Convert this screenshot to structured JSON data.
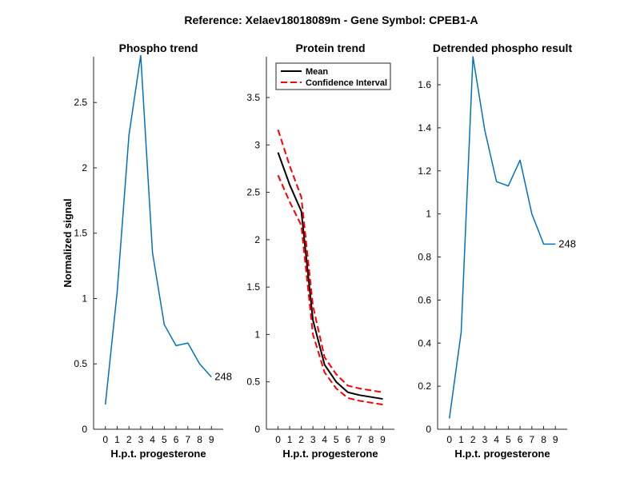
{
  "figure": {
    "suptitle": "Reference:  Xelaev18018089m - Gene Symbol:  CPEB1-A"
  },
  "chart_data": [
    {
      "type": "line",
      "title": "Phospho trend",
      "xlabel": "H.p.t. progesterone",
      "ylabel": "Normalized signal",
      "xlim": [
        -1,
        10
      ],
      "ylim": [
        0,
        2.85
      ],
      "xticks": [
        0,
        1,
        2,
        3,
        4,
        5,
        6,
        7,
        8,
        9
      ],
      "yticks": [
        0,
        0.5,
        1,
        1.5,
        2,
        2.5
      ],
      "ytick_labels": [
        "0",
        "0.5",
        "1",
        "1.5",
        "2",
        "2.5"
      ],
      "series": [
        {
          "name": "phospho",
          "color": "#0072BD",
          "style": "solid",
          "x": [
            0,
            1,
            2,
            3,
            4,
            5,
            6,
            7,
            8,
            9
          ],
          "values": [
            0.19,
            1.05,
            2.25,
            2.86,
            1.35,
            0.8,
            0.64,
            0.66,
            0.5,
            0.4
          ]
        }
      ],
      "annotation": {
        "text": "248",
        "x": 9,
        "y": 0.4
      }
    },
    {
      "type": "line",
      "title": "Protein trend",
      "xlabel": "H.p.t. progesterone",
      "ylabel": "",
      "xlim": [
        -1,
        10
      ],
      "ylim": [
        0,
        3.93
      ],
      "xticks": [
        0,
        1,
        2,
        3,
        4,
        5,
        6,
        7,
        8,
        9
      ],
      "yticks": [
        0,
        0.5,
        1,
        1.5,
        2,
        2.5,
        3,
        3.5
      ],
      "ytick_labels": [
        "0",
        "0.5",
        "1",
        "1.5",
        "2",
        "2.5",
        "3",
        "3.5"
      ],
      "legend": {
        "position": "top-left",
        "entries": [
          "Mean",
          "Confidence Interval"
        ]
      },
      "series": [
        {
          "name": "Mean",
          "color": "#000000",
          "style": "solid",
          "x": [
            0,
            1,
            2,
            3,
            4,
            5,
            6,
            7,
            8,
            9
          ],
          "values": [
            2.92,
            2.58,
            2.3,
            1.15,
            0.68,
            0.5,
            0.39,
            0.36,
            0.34,
            0.32
          ]
        },
        {
          "name": "Confidence Interval",
          "color": "#FF0000",
          "style": "dashed",
          "x": [
            0,
            1,
            2,
            3,
            4,
            5,
            6,
            7,
            8,
            9
          ],
          "values": [
            3.16,
            2.78,
            2.45,
            1.3,
            0.76,
            0.58,
            0.46,
            0.43,
            0.41,
            0.39
          ]
        },
        {
          "name": "Confidence Interval (lower)",
          "color": "#FF0000",
          "style": "dashed",
          "x": [
            0,
            1,
            2,
            3,
            4,
            5,
            6,
            7,
            8,
            9
          ],
          "values": [
            2.68,
            2.4,
            2.15,
            1.0,
            0.6,
            0.43,
            0.33,
            0.3,
            0.28,
            0.26
          ]
        }
      ]
    },
    {
      "type": "line",
      "title": "Detrended phospho result",
      "xlabel": "H.p.t. progesterone",
      "ylabel": "",
      "xlim": [
        -1,
        10
      ],
      "ylim": [
        0,
        1.73
      ],
      "xticks": [
        0,
        1,
        2,
        3,
        4,
        5,
        6,
        7,
        8,
        9
      ],
      "yticks": [
        0,
        0.2,
        0.4,
        0.6,
        0.8,
        1,
        1.2,
        1.4,
        1.6
      ],
      "ytick_labels": [
        "0",
        "0.2",
        "0.4",
        "0.6",
        "0.8",
        "1",
        "1.2",
        "1.4",
        "1.6"
      ],
      "series": [
        {
          "name": "detrended",
          "color": "#0072BD",
          "style": "solid",
          "x": [
            0,
            1,
            2,
            3,
            4,
            5,
            6,
            7,
            8,
            9
          ],
          "values": [
            0.05,
            0.45,
            1.73,
            1.39,
            1.15,
            1.13,
            1.25,
            1.0,
            0.86,
            0.86
          ]
        }
      ],
      "annotation": {
        "text": "248",
        "x": 9,
        "y": 0.86
      }
    }
  ]
}
